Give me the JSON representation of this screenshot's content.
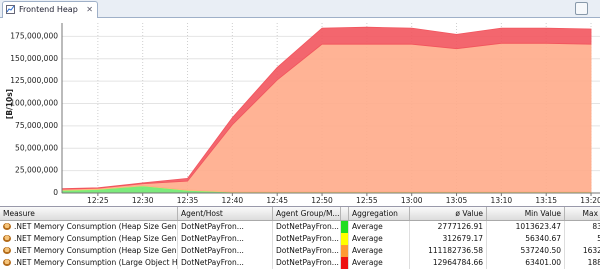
{
  "tab": {
    "title": "Frontend Heap"
  },
  "chart_data": {
    "type": "area",
    "stacked": true,
    "grid": true,
    "ylabel": "[B/10s]",
    "x": [
      "12:21",
      "12:25",
      "12:30",
      "12:35",
      "12:40",
      "12:45",
      "12:50",
      "12:55",
      "13:00",
      "13:05",
      "13:10",
      "13:15",
      "13:20"
    ],
    "xlim": [
      "12:21",
      "13:21"
    ],
    "xticks": [
      "12:25",
      "12:30",
      "12:35",
      "12:40",
      "12:45",
      "12:50",
      "12:55",
      "13:00",
      "13:05",
      "13:10",
      "13:15",
      "13:20"
    ],
    "ylim": [
      0,
      190000000
    ],
    "yticks": [
      0,
      {
        "value": 25000000,
        "label": "25,000,000"
      },
      {
        "value": 50000000,
        "label": "50,000,000"
      },
      {
        "value": 75000000,
        "label": "75,000,000"
      },
      {
        "value": 100000000,
        "label": "100,000,000"
      },
      {
        "value": 125000000,
        "label": "125,000,000"
      },
      {
        "value": 150000000,
        "label": "150,000,000"
      },
      {
        "value": 175000000,
        "label": "175,000,000"
      }
    ],
    "series": [
      {
        "color": "#6ee86e",
        "values": [
          3000000,
          4000000,
          8000000,
          3000000,
          1000000,
          1000000,
          1000000,
          1000000,
          1000000,
          1000000,
          1000000,
          1000000,
          1000000
        ]
      },
      {
        "color": "#eeee55",
        "values": [
          300000,
          300000,
          300000,
          300000,
          300000,
          300000,
          300000,
          300000,
          300000,
          300000,
          300000,
          300000,
          300000
        ]
      },
      {
        "color": "#ffab8a",
        "values": [
          1000000,
          1000000,
          2000000,
          10000000,
          75000000,
          125000000,
          165000000,
          165000000,
          165000000,
          160000000,
          166000000,
          166000000,
          165000000
        ]
      },
      {
        "color": "#f2555e",
        "values": [
          500000,
          500000,
          1000000,
          3000000,
          8000000,
          14000000,
          18000000,
          19000000,
          18000000,
          16000000,
          17000000,
          17000000,
          17000000
        ]
      }
    ]
  },
  "table": {
    "columns": [
      "Measure",
      "Agent/Host",
      "Agent Group/M...",
      "Aggregation",
      "ø Value",
      "Min Value",
      "Max Value"
    ],
    "swatches": [
      "#22dd22",
      "#ffff00",
      "#ff9933",
      "#ee1111"
    ],
    "rows": [
      [
        ".NET Memory Consumption (Heap Size Gen 0),{monito",
        "DotNetPayFron...",
        "DotNetPayFron...",
        "Average",
        "2777126.91",
        "1013623.47",
        "838860"
      ],
      [
        ".NET Memory Consumption (Heap Size Gen 1),{monito",
        "DotNetPayFron...",
        "DotNetPayFron...",
        "Average",
        "312679.17",
        "56340.67",
        "54111"
      ],
      [
        ".NET Memory Consumption (Heap Size Gen 2),{monito",
        "DotNetPayFron...",
        "DotNetPayFron...",
        "Average",
        "111182736.58",
        "537240.50",
        "16321083"
      ],
      [
        ".NET Memory Consumption (Large Object Heap Size),",
        "DotNetPayFron...",
        "DotNetPayFron...",
        "Average",
        "12964784.66",
        "63401.00",
        "1882821"
      ]
    ]
  }
}
